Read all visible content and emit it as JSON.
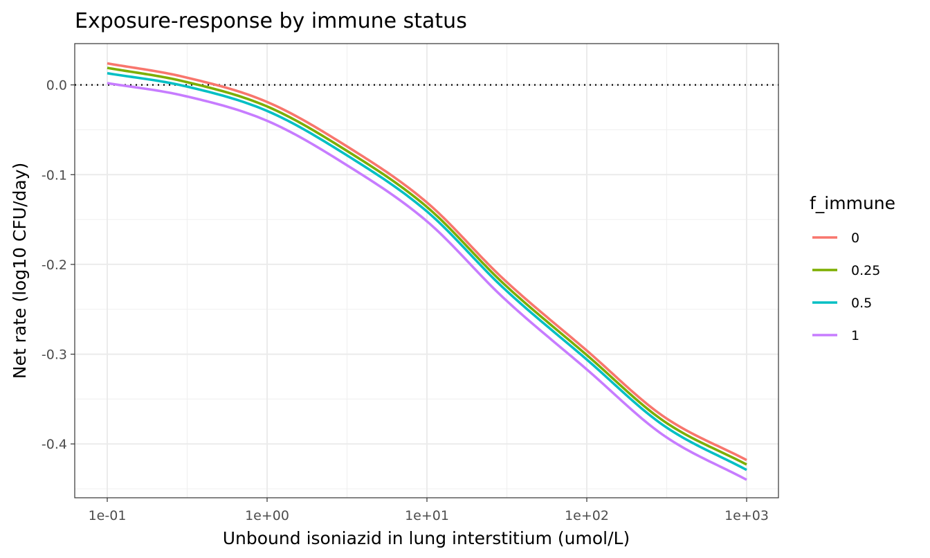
{
  "chart_data": {
    "type": "line",
    "title": "Exposure-response by immune status",
    "xlabel": "Unbound isoniazid in lung interstitium (umol/L)",
    "ylabel": "Net rate (log10 CFU/day)",
    "x_scale": "log10",
    "xlim": [
      0.1,
      1000
    ],
    "ylim": [
      -0.46,
      0.046
    ],
    "x_ticks": [
      0.1,
      1,
      10,
      100,
      1000
    ],
    "x_tick_labels": [
      "1e-01",
      "1e+00",
      "1e+01",
      "1e+02",
      "1e+03"
    ],
    "y_ticks": [
      0.0,
      -0.1,
      -0.2,
      -0.3,
      -0.4
    ],
    "y_tick_labels": [
      "0.0",
      "-0.1",
      "-0.2",
      "-0.3",
      "-0.4"
    ],
    "grid": true,
    "reference_line": {
      "y": 0,
      "style": "dotted",
      "color": "#000000"
    },
    "legend": {
      "title": "f_immune",
      "position": "right"
    },
    "x": [
      0.1,
      0.3,
      1,
      3,
      10,
      30,
      100,
      300,
      1000
    ],
    "series": [
      {
        "name": "0",
        "color": "#F8766D",
        "values": [
          0.024,
          0.009,
          -0.019,
          -0.066,
          -0.131,
          -0.216,
          -0.296,
          -0.369,
          -0.418
        ]
      },
      {
        "name": "0.25",
        "color": "#7CAE00",
        "values": [
          0.019,
          0.004,
          -0.024,
          -0.071,
          -0.136,
          -0.221,
          -0.301,
          -0.374,
          -0.423
        ]
      },
      {
        "name": "0.5",
        "color": "#00BFC4",
        "values": [
          0.013,
          -0.001,
          -0.029,
          -0.076,
          -0.141,
          -0.226,
          -0.306,
          -0.379,
          -0.429
        ]
      },
      {
        "name": "1",
        "color": "#C77CFF",
        "values": [
          0.002,
          -0.012,
          -0.04,
          -0.087,
          -0.152,
          -0.237,
          -0.317,
          -0.39,
          -0.44
        ]
      }
    ]
  }
}
